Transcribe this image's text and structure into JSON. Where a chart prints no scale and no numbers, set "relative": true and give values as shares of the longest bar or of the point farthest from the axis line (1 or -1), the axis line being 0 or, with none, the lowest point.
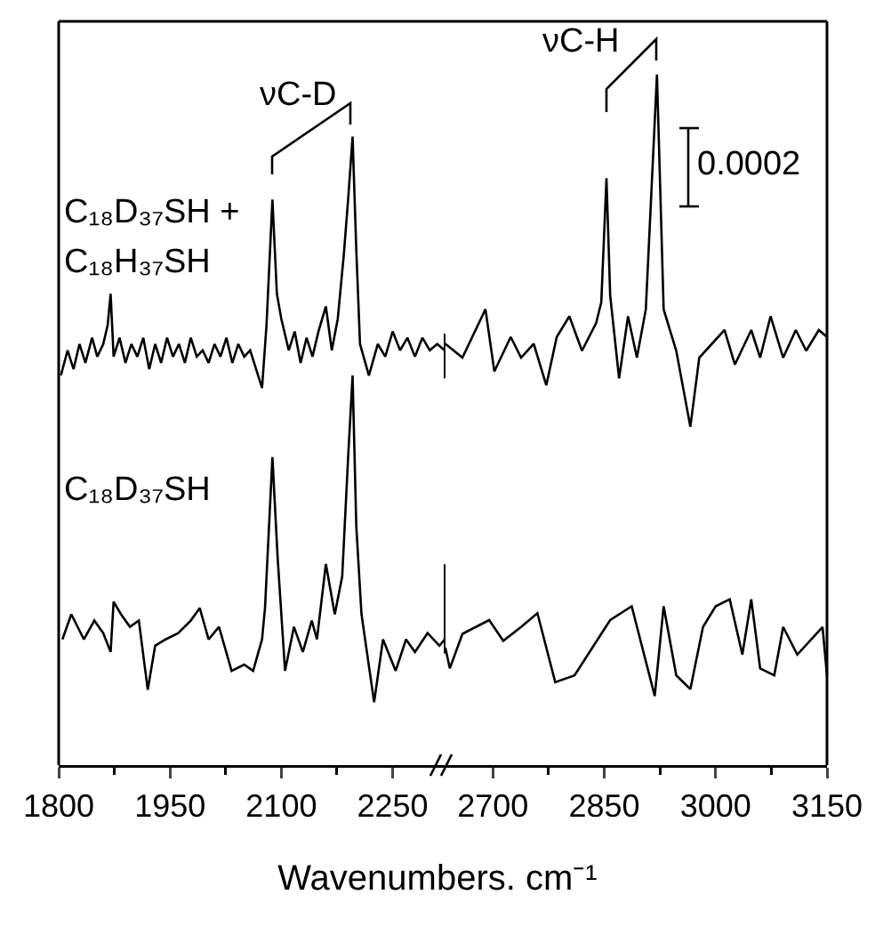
{
  "chart_data": [
    {
      "type": "line",
      "relative": true,
      "xlabel": "Wavenumbers. cm⁻¹",
      "xlim": [
        1800,
        2320
      ],
      "xticks": [
        1800,
        {
          "value": 1875,
          "label": null
        },
        1950,
        {
          "value": 2025,
          "label": null
        },
        2100,
        {
          "value": 2175,
          "label": null
        },
        2250
      ],
      "tick_labels": "x",
      "legend": false,
      "grid": false,
      "annotations": [
        "νC-D"
      ],
      "series": [
        {
          "name": "C₁₈D₃₇SH + C₁₈H₃₇SH",
          "color": "#000000",
          "x": [
            1803,
            1812,
            1820,
            1828,
            1836,
            1845,
            1852,
            1860,
            1866,
            1870,
            1874,
            1882,
            1890,
            1898,
            1906,
            1914,
            1922,
            1930,
            1938,
            1946,
            1954,
            1962,
            1970,
            1978,
            1986,
            1994,
            2002,
            2010,
            2018,
            2026,
            2034,
            2042,
            2050,
            2058,
            2066,
            2074,
            2080,
            2088,
            2094,
            2100,
            2110,
            2118,
            2126,
            2134,
            2142,
            2150,
            2160,
            2168,
            2176,
            2184,
            2190,
            2196,
            2201,
            2206,
            2218,
            2230,
            2240,
            2250,
            2260,
            2270,
            2280,
            2290,
            2300,
            2310,
            2320
          ],
          "values": [
            0.62,
            0.66,
            0.63,
            0.67,
            0.64,
            0.68,
            0.65,
            0.67,
            0.7,
            0.75,
            0.65,
            0.68,
            0.64,
            0.67,
            0.65,
            0.68,
            0.63,
            0.67,
            0.64,
            0.68,
            0.65,
            0.67,
            0.64,
            0.68,
            0.65,
            0.66,
            0.64,
            0.67,
            0.65,
            0.68,
            0.64,
            0.67,
            0.65,
            0.66,
            0.63,
            0.6,
            0.7,
            0.9,
            0.75,
            0.71,
            0.66,
            0.69,
            0.64,
            0.68,
            0.65,
            0.69,
            0.73,
            0.66,
            0.71,
            0.81,
            0.9,
            1,
            0.82,
            0.67,
            0.62,
            0.67,
            0.65,
            0.69,
            0.66,
            0.68,
            0.65,
            0.68,
            0.66,
            0.67,
            0.66
          ]
        },
        {
          "name": "C₁₈D₃₇SH",
          "color": "#000000",
          "x": [
            1805,
            1817,
            1834,
            1848,
            1860,
            1870,
            1874,
            1884,
            1896,
            1908,
            1920,
            1930,
            1944,
            1961,
            1978,
            1990,
            2002,
            2016,
            2033,
            2050,
            2062,
            2074,
            2078,
            2088,
            2095,
            2105,
            2117,
            2129,
            2141,
            2148,
            2160,
            2172,
            2182,
            2190,
            2196,
            2201,
            2208,
            2225,
            2237,
            2254,
            2268,
            2280,
            2297,
            2313,
            2320
          ],
          "values": [
            0.2,
            0.24,
            0.2,
            0.23,
            0.21,
            0.18,
            0.26,
            0.24,
            0.22,
            0.23,
            0.12,
            0.19,
            0.2,
            0.21,
            0.23,
            0.25,
            0.2,
            0.22,
            0.15,
            0.16,
            0.15,
            0.2,
            0.25,
            0.49,
            0.33,
            0.15,
            0.22,
            0.18,
            0.23,
            0.2,
            0.32,
            0.24,
            0.3,
            0.49,
            0.62,
            0.38,
            0.24,
            0.1,
            0.2,
            0.15,
            0.2,
            0.18,
            0.21,
            0.19,
            0.2
          ]
        }
      ]
    },
    {
      "type": "line",
      "relative": true,
      "xlim": [
        2635,
        3150
      ],
      "xticks": [
        2700,
        {
          "value": 2775,
          "label": null
        },
        2850,
        {
          "value": 2925,
          "label": null
        },
        3000,
        {
          "value": 3075,
          "label": null
        },
        3150
      ],
      "tick_labels": "x",
      "legend": false,
      "grid": false,
      "annotations": [
        "νC-H",
        "0.0002"
      ],
      "series": [
        {
          "color": "#000000",
          "x": [
            2636,
            2659,
            2690,
            2702,
            2724,
            2738,
            2755,
            2772,
            2786,
            2803,
            2820,
            2839,
            2846,
            2853,
            2858,
            2870,
            2882,
            2894,
            2906,
            2921,
            2930,
            2947,
            2966,
            2978,
            2995,
            3012,
            3026,
            3048,
            3060,
            3074,
            3091,
            3108,
            3122,
            3139,
            3150
          ],
          "values": [
            0.61,
            0.59,
            0.66,
            0.57,
            0.62,
            0.59,
            0.61,
            0.55,
            0.62,
            0.65,
            0.6,
            0.64,
            0.67,
            0.85,
            0.68,
            0.56,
            0.65,
            0.59,
            0.66,
            1,
            0.66,
            0.6,
            0.49,
            0.59,
            0.61,
            0.63,
            0.58,
            0.63,
            0.59,
            0.65,
            0.59,
            0.63,
            0.6,
            0.63,
            0.62
          ]
        },
        {
          "color": "#000000",
          "x": [
            2636,
            2642,
            2659,
            2695,
            2714,
            2738,
            2760,
            2784,
            2810,
            2834,
            2858,
            2887,
            2918,
            2930,
            2947,
            2966,
            2983,
            3000,
            3019,
            3036,
            3048,
            3060,
            3079,
            3091,
            3110,
            3127,
            3144,
            3150
          ],
          "values": [
            0.17,
            0.14,
            0.19,
            0.21,
            0.18,
            0.2,
            0.22,
            0.12,
            0.13,
            0.17,
            0.21,
            0.23,
            0.1,
            0.23,
            0.13,
            0.11,
            0.2,
            0.23,
            0.24,
            0.16,
            0.24,
            0.14,
            0.13,
            0.2,
            0.16,
            0.18,
            0.2,
            0.13
          ]
        }
      ]
    }
  ]
}
